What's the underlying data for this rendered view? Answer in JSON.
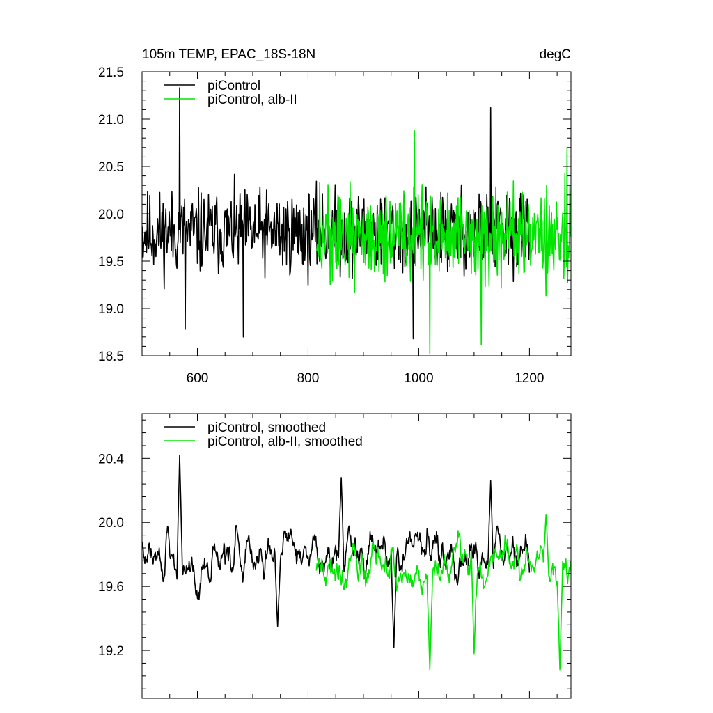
{
  "header": {
    "title": "105m TEMP, EPAC_18S-18N",
    "units": "degC"
  },
  "colors": {
    "piControl": "#000000",
    "alb_II": "#00e600",
    "axis": "#000000"
  },
  "chart_data": [
    {
      "type": "line",
      "title": "105m TEMP, EPAC_18S-18N",
      "units": "degC",
      "xlim": [
        500,
        1275
      ],
      "ylim": [
        18.5,
        21.5
      ],
      "xticks": [
        600,
        800,
        1000,
        1200
      ],
      "xtick_labels": [
        "600",
        "800",
        "1000",
        "1200"
      ],
      "yticks": [
        18.5,
        19.0,
        19.5,
        20.0,
        20.5,
        21.0,
        21.5
      ],
      "ytick_labels": [
        "18.5",
        "19.0",
        "19.5",
        "20.0",
        "20.5",
        "21.0",
        "21.5"
      ],
      "legend_position": "top-left",
      "series": [
        {
          "name": "piControl",
          "color": "#000000",
          "x_start": 500,
          "x_end": 1200,
          "mean": 19.8,
          "noise_amp": 0.5,
          "annotated_points": [
            [
              568,
              21.33
            ],
            [
              578,
              18.78
            ],
            [
              683,
              18.7
            ],
            [
              1130,
              21.12
            ],
            [
              990,
              18.68
            ]
          ]
        },
        {
          "name": "piControl, alb-II",
          "color": "#00e600",
          "x_start": 815,
          "x_end": 1275,
          "mean": 19.75,
          "noise_amp": 0.55,
          "annotated_points": [
            [
              992,
              20.88
            ],
            [
              1020,
              18.52
            ],
            [
              1113,
              18.62
            ],
            [
              1268,
              20.7
            ]
          ]
        }
      ]
    },
    {
      "type": "line",
      "xlim": [
        500,
        1275
      ],
      "ylim": [
        18.9,
        20.68
      ],
      "yticks": [
        19.2,
        19.6,
        20.0,
        20.4
      ],
      "ytick_labels": [
        "19.2",
        "19.6",
        "20.0",
        "20.4"
      ],
      "legend_position": "top-left",
      "series": [
        {
          "name": "piControl, smoothed",
          "color": "#000000",
          "x_start": 500,
          "x_end": 1200,
          "mean": 19.8,
          "noise_amp": 0.2,
          "annotated_points": [
            [
              568,
              20.42
            ],
            [
              860,
              20.28
            ],
            [
              1130,
              20.26
            ],
            [
              745,
              19.35
            ],
            [
              955,
              19.22
            ]
          ]
        },
        {
          "name": "piControl, alb-II, smoothed",
          "color": "#00e600",
          "x_start": 815,
          "x_end": 1275,
          "mean": 19.72,
          "noise_amp": 0.22,
          "annotated_points": [
            [
              1020,
              19.08
            ],
            [
              1100,
              19.18
            ],
            [
              1255,
              19.08
            ],
            [
              1230,
              20.05
            ]
          ]
        }
      ]
    }
  ]
}
